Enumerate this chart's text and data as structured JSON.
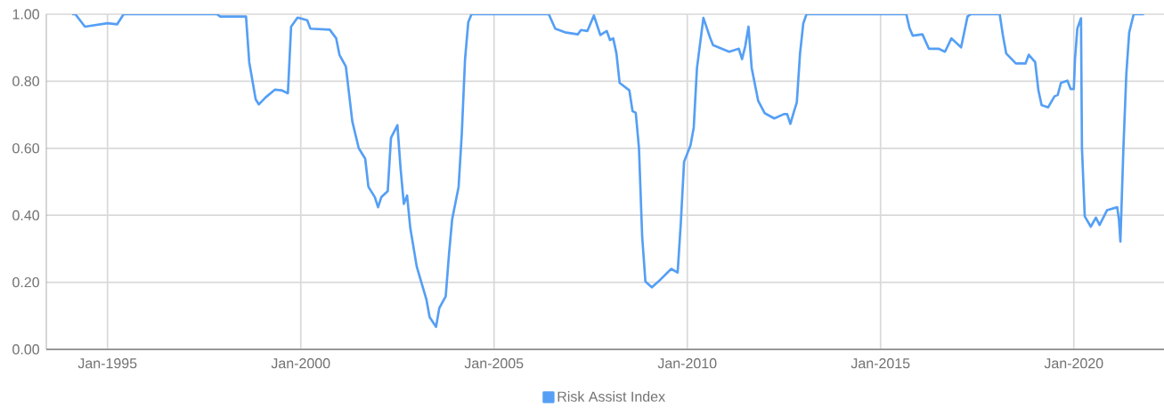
{
  "chart_data": {
    "type": "line",
    "x": [
      "1994-02",
      "1994-03",
      "1994-06",
      "1995-01",
      "1995-04",
      "1995-06",
      "1997-11",
      "1997-12",
      "1998-08",
      "1998-09",
      "1998-11",
      "1998-12",
      "1999-02",
      "1999-05",
      "1999-07",
      "1999-09",
      "1999-10",
      "1999-12",
      "2000-03",
      "2000-04",
      "2000-10",
      "2000-12",
      "2001-01",
      "2001-03",
      "2001-05",
      "2001-07",
      "2001-09",
      "2001-10",
      "2001-12",
      "2002-01",
      "2002-02",
      "2002-04",
      "2002-05",
      "2002-07",
      "2002-08",
      "2002-09",
      "2002-10",
      "2002-11",
      "2003-01",
      "2003-04",
      "2003-05",
      "2003-07",
      "2003-08",
      "2003-10",
      "2003-11",
      "2003-12",
      "2004-02",
      "2004-03",
      "2004-04",
      "2004-05",
      "2004-06",
      "2006-06",
      "2006-08",
      "2006-11",
      "2007-03",
      "2007-04",
      "2007-06",
      "2007-08",
      "2007-10",
      "2007-12",
      "2008-01",
      "2008-02",
      "2008-03",
      "2008-04",
      "2008-07",
      "2008-08",
      "2008-09",
      "2008-10",
      "2008-11",
      "2008-12",
      "2009-02",
      "2009-04",
      "2009-08",
      "2009-10",
      "2009-11",
      "2009-12",
      "2010-02",
      "2010-03",
      "2010-04",
      "2010-06",
      "2010-08",
      "2010-09",
      "2011-02",
      "2011-05",
      "2011-06",
      "2011-07",
      "2011-08",
      "2011-09",
      "2011-11",
      "2012-01",
      "2012-04",
      "2012-07",
      "2012-08",
      "2012-09",
      "2012-10",
      "2012-11",
      "2012-12",
      "2013-01",
      "2013-02",
      "2015-09",
      "2015-10",
      "2015-11",
      "2016-02",
      "2016-04",
      "2016-07",
      "2016-09",
      "2016-11",
      "2017-02",
      "2017-04",
      "2017-05",
      "2018-02",
      "2018-03",
      "2018-04",
      "2018-07",
      "2018-10",
      "2018-11",
      "2019-01",
      "2019-02",
      "2019-03",
      "2019-05",
      "2019-07",
      "2019-08",
      "2019-09",
      "2019-11",
      "2019-12",
      "2020-01-01",
      "2020-01-12",
      "2020-02-04",
      "2020-03-08",
      "2020-03-17",
      "2020-04-13",
      "2020-06-09",
      "2020-07-27",
      "2020-09-01",
      "2020-11-10",
      "2021-02-15",
      "2021-03-01",
      "2021-03-15",
      "2021-04-13",
      "2021-05-10",
      "2021-06-07",
      "2021-07-19",
      "2021-10-25"
    ],
    "series": [
      {
        "name": "Risk Assist Index",
        "color": "#559ff5",
        "values": [
          1.0,
          1.0,
          0.963,
          0.973,
          0.97,
          1.0,
          1.0,
          0.993,
          0.993,
          0.857,
          0.746,
          0.731,
          0.751,
          0.775,
          0.773,
          0.764,
          0.963,
          0.99,
          0.982,
          0.957,
          0.954,
          0.928,
          0.879,
          0.844,
          0.68,
          0.6,
          0.569,
          0.485,
          0.454,
          0.424,
          0.454,
          0.472,
          0.631,
          0.669,
          0.538,
          0.434,
          0.459,
          0.362,
          0.247,
          0.149,
          0.096,
          0.067,
          0.123,
          0.158,
          0.282,
          0.388,
          0.485,
          0.645,
          0.866,
          0.976,
          1.0,
          1.0,
          0.957,
          0.946,
          0.94,
          0.953,
          0.95,
          0.996,
          0.938,
          0.95,
          0.923,
          0.928,
          0.883,
          0.795,
          0.773,
          0.711,
          0.706,
          0.6,
          0.335,
          0.202,
          0.185,
          0.202,
          0.24,
          0.229,
          0.379,
          0.56,
          0.609,
          0.662,
          0.839,
          0.989,
          0.932,
          0.908,
          0.888,
          0.897,
          0.866,
          0.905,
          0.963,
          0.839,
          0.742,
          0.705,
          0.689,
          0.702,
          0.702,
          0.673,
          0.706,
          0.737,
          0.883,
          0.972,
          1.0,
          1.0,
          0.958,
          0.936,
          0.94,
          0.897,
          0.897,
          0.888,
          0.928,
          0.901,
          0.993,
          1.0,
          1.0,
          0.936,
          0.883,
          0.853,
          0.853,
          0.879,
          0.857,
          0.773,
          0.729,
          0.722,
          0.755,
          0.759,
          0.795,
          0.802,
          0.777,
          0.777,
          0.866,
          0.958,
          0.988,
          0.6,
          0.397,
          0.366,
          0.393,
          0.371,
          0.415,
          0.424,
          0.388,
          0.322,
          0.6,
          0.821,
          0.946,
          1.0,
          1.0
        ]
      }
    ],
    "xlim": [
      "1993-06",
      "2022-05"
    ],
    "xticks": [
      {
        "value": "1995-01",
        "label": "Jan-1995"
      },
      {
        "value": "2000-01",
        "label": "Jan-2000"
      },
      {
        "value": "2005-01",
        "label": "Jan-2005"
      },
      {
        "value": "2010-01",
        "label": "Jan-2010"
      },
      {
        "value": "2015-01",
        "label": "Jan-2015"
      },
      {
        "value": "2020-01",
        "label": "Jan-2020"
      }
    ],
    "ylim": [
      0,
      1
    ],
    "yticks": [
      {
        "value": 0,
        "label": "0.00"
      },
      {
        "value": 0.2,
        "label": "0.20"
      },
      {
        "value": 0.4,
        "label": "0.40"
      },
      {
        "value": 0.6,
        "label": "0.60"
      },
      {
        "value": 0.8,
        "label": "0.80"
      },
      {
        "value": 1,
        "label": "1.00"
      }
    ],
    "grid": true,
    "legend": "bottom",
    "marker": "none",
    "line_style": "solid"
  }
}
